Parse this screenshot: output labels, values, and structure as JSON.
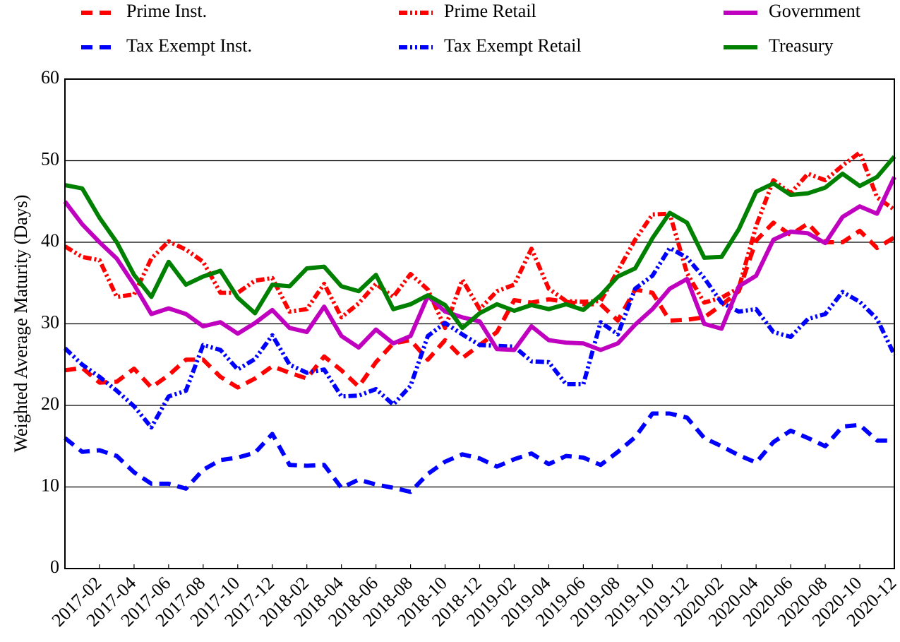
{
  "chart_data": {
    "type": "line",
    "ylabel": "Weighted Average Maturity (Days)",
    "categories": [
      null,
      null,
      "2017-02",
      null,
      "2017-04",
      null,
      "2017-06",
      null,
      "2017-08",
      null,
      "2017-10",
      null,
      "2017-12",
      null,
      "2018-02",
      null,
      "2018-04",
      null,
      "2018-06",
      null,
      "2018-08",
      null,
      "2018-10",
      null,
      "2018-12",
      null,
      "2019-02",
      null,
      "2019-04",
      null,
      "2019-06",
      null,
      "2019-08",
      null,
      "2019-10",
      null,
      "2019-12",
      null,
      "2020-02",
      null,
      "2020-04",
      null,
      "2020-06",
      null,
      "2020-08",
      null,
      "2020-10",
      null,
      "2020-12"
    ],
    "ylim": [
      0,
      60
    ],
    "yticks": [
      0,
      10,
      20,
      30,
      40,
      50,
      60
    ],
    "grid": true,
    "series": [
      {
        "name": "Prime Inst.",
        "color": "#ff0000",
        "style": "dashed",
        "values": [
          24.3,
          24.6,
          22.8,
          22.9,
          24.5,
          22.2,
          23.7,
          25.6,
          25.6,
          23.5,
          22.2,
          23.3,
          24.8,
          24,
          23.3,
          26,
          24.3,
          22.3,
          25.3,
          27.6,
          28,
          25.6,
          28,
          25.8,
          27.4,
          29,
          32.9,
          32.6,
          33,
          32.7,
          32.4,
          32.4,
          30.4,
          34.2,
          33.8,
          30.4,
          30.5,
          30.8,
          32.3,
          34,
          40.2,
          42.4,
          40.9,
          42.3,
          40,
          40,
          41.4,
          39.3,
          40.6
        ]
      },
      {
        "name": "Tax Exempt Inst.",
        "color": "#0000ff",
        "style": "dashed",
        "values": [
          16,
          14.3,
          14.5,
          13.8,
          11.8,
          10.4,
          10.4,
          9.8,
          12.1,
          13.3,
          13.6,
          14.2,
          16.5,
          12.7,
          12.6,
          12.7,
          9.9,
          10.9,
          10.3,
          9.9,
          9.4,
          11.6,
          13.1,
          14,
          13.5,
          12.5,
          13.4,
          14.1,
          12.8,
          13.8,
          13.6,
          12.7,
          14.3,
          16.1,
          19,
          19,
          18.5,
          16,
          15,
          13.9,
          13,
          15.5,
          16.9,
          16,
          15,
          17.4,
          17.6,
          15.7,
          15.7
        ]
      },
      {
        "name": "Prime Retail",
        "color": "#ff0000",
        "style": "dashdot",
        "values": [
          39.5,
          38.2,
          37.8,
          33.3,
          33.6,
          38,
          40.1,
          39.1,
          37.6,
          33.8,
          33.8,
          35.3,
          35.6,
          31.5,
          31.8,
          34.9,
          30.8,
          32.5,
          34.9,
          33.3,
          36.1,
          34.2,
          29.5,
          35.4,
          31.8,
          34,
          34.8,
          39.2,
          34.3,
          32.8,
          32.7,
          32.8,
          36.5,
          40.3,
          43.4,
          43.5,
          36.2,
          32.6,
          33.2,
          34.4,
          42,
          47.6,
          46,
          48.4,
          47.6,
          49.4,
          51,
          45.5,
          44
        ]
      },
      {
        "name": "Tax Exempt Retail",
        "color": "#0000ff",
        "style": "dashdot",
        "values": [
          27,
          25,
          23.5,
          21.8,
          19.9,
          17.3,
          21.1,
          21.8,
          27.4,
          26.8,
          24.4,
          25.7,
          28.6,
          25,
          24,
          24.4,
          21.1,
          21.2,
          22,
          20.1,
          22.4,
          28.5,
          30.1,
          28.7,
          27.4,
          27.3,
          27.2,
          25.4,
          25.3,
          22.6,
          22.6,
          30.2,
          28.7,
          34.3,
          35.9,
          39.3,
          38.1,
          35.6,
          32.6,
          31.5,
          31.8,
          29,
          28.4,
          30.6,
          31.2,
          33.9,
          32.7,
          30.6,
          26.2
        ]
      },
      {
        "name": "Government",
        "color": "#bf00bf",
        "style": "solid",
        "values": [
          45,
          42.2,
          40,
          38,
          34.8,
          31.2,
          31.9,
          31.2,
          29.7,
          30.2,
          28.8,
          30.1,
          31.7,
          29.5,
          29,
          32.1,
          28.5,
          27.1,
          29.3,
          27.6,
          28.5,
          33.4,
          31.5,
          30.8,
          30.3,
          26.9,
          26.8,
          29.7,
          28,
          27.7,
          27.6,
          26.8,
          27.6,
          29.9,
          31.8,
          34.3,
          35.5,
          30,
          29.4,
          34.6,
          35.9,
          40.3,
          41.3,
          41.1,
          39.9,
          43.1,
          44.4,
          43.5,
          48
        ]
      },
      {
        "name": "Treasury",
        "color": "#008000",
        "style": "solid",
        "values": [
          47,
          46.6,
          43,
          40,
          36,
          33.3,
          37.6,
          34.8,
          35.8,
          36.5,
          33.2,
          31.3,
          34.8,
          34.6,
          36.8,
          37,
          34.6,
          34,
          36,
          31.8,
          32.4,
          33.5,
          32.3,
          29.5,
          31.3,
          32.4,
          31.6,
          32.3,
          31.8,
          32.4,
          31.7,
          33.5,
          35.8,
          36.8,
          40.5,
          43.6,
          42.4,
          38.1,
          38.2,
          41.6,
          46.2,
          47.2,
          45.8,
          46,
          46.7,
          48.4,
          46.9,
          48,
          50.5
        ]
      }
    ]
  }
}
